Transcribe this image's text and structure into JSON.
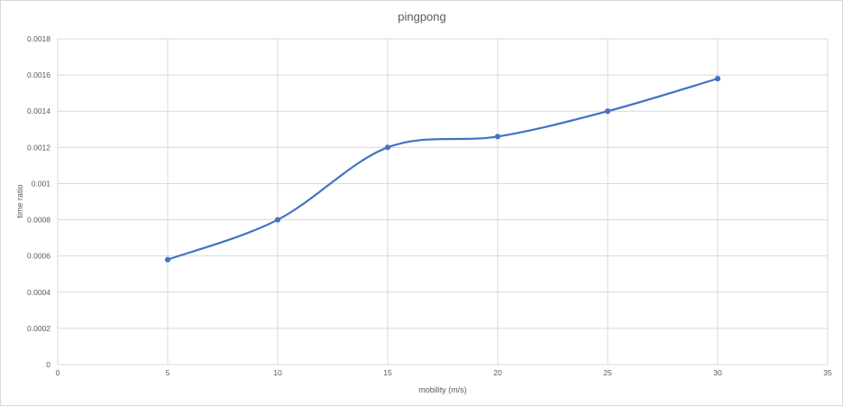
{
  "chart_data": {
    "type": "scatter",
    "title": "pingpong",
    "xlabel": "mobility  (m/s)",
    "ylabel": "time ratio",
    "xlim": [
      0,
      35
    ],
    "ylim": [
      0,
      0.0018
    ],
    "x_ticks": [
      "0",
      "5",
      "10",
      "15",
      "20",
      "25",
      "30",
      "35"
    ],
    "y_ticks": [
      "0",
      "0.0002",
      "0.0004",
      "0.0006",
      "0.0008",
      "0.001",
      "0.0012",
      "0.0014",
      "0.0016",
      "0.0018"
    ],
    "grid": true,
    "smooth_line": true,
    "series": [
      {
        "color": "#4472c4",
        "x": [
          5,
          10,
          15,
          20,
          25,
          30
        ],
        "y": [
          0.00058,
          0.0008,
          0.0012,
          0.00126,
          0.0014,
          0.00158
        ]
      }
    ]
  }
}
